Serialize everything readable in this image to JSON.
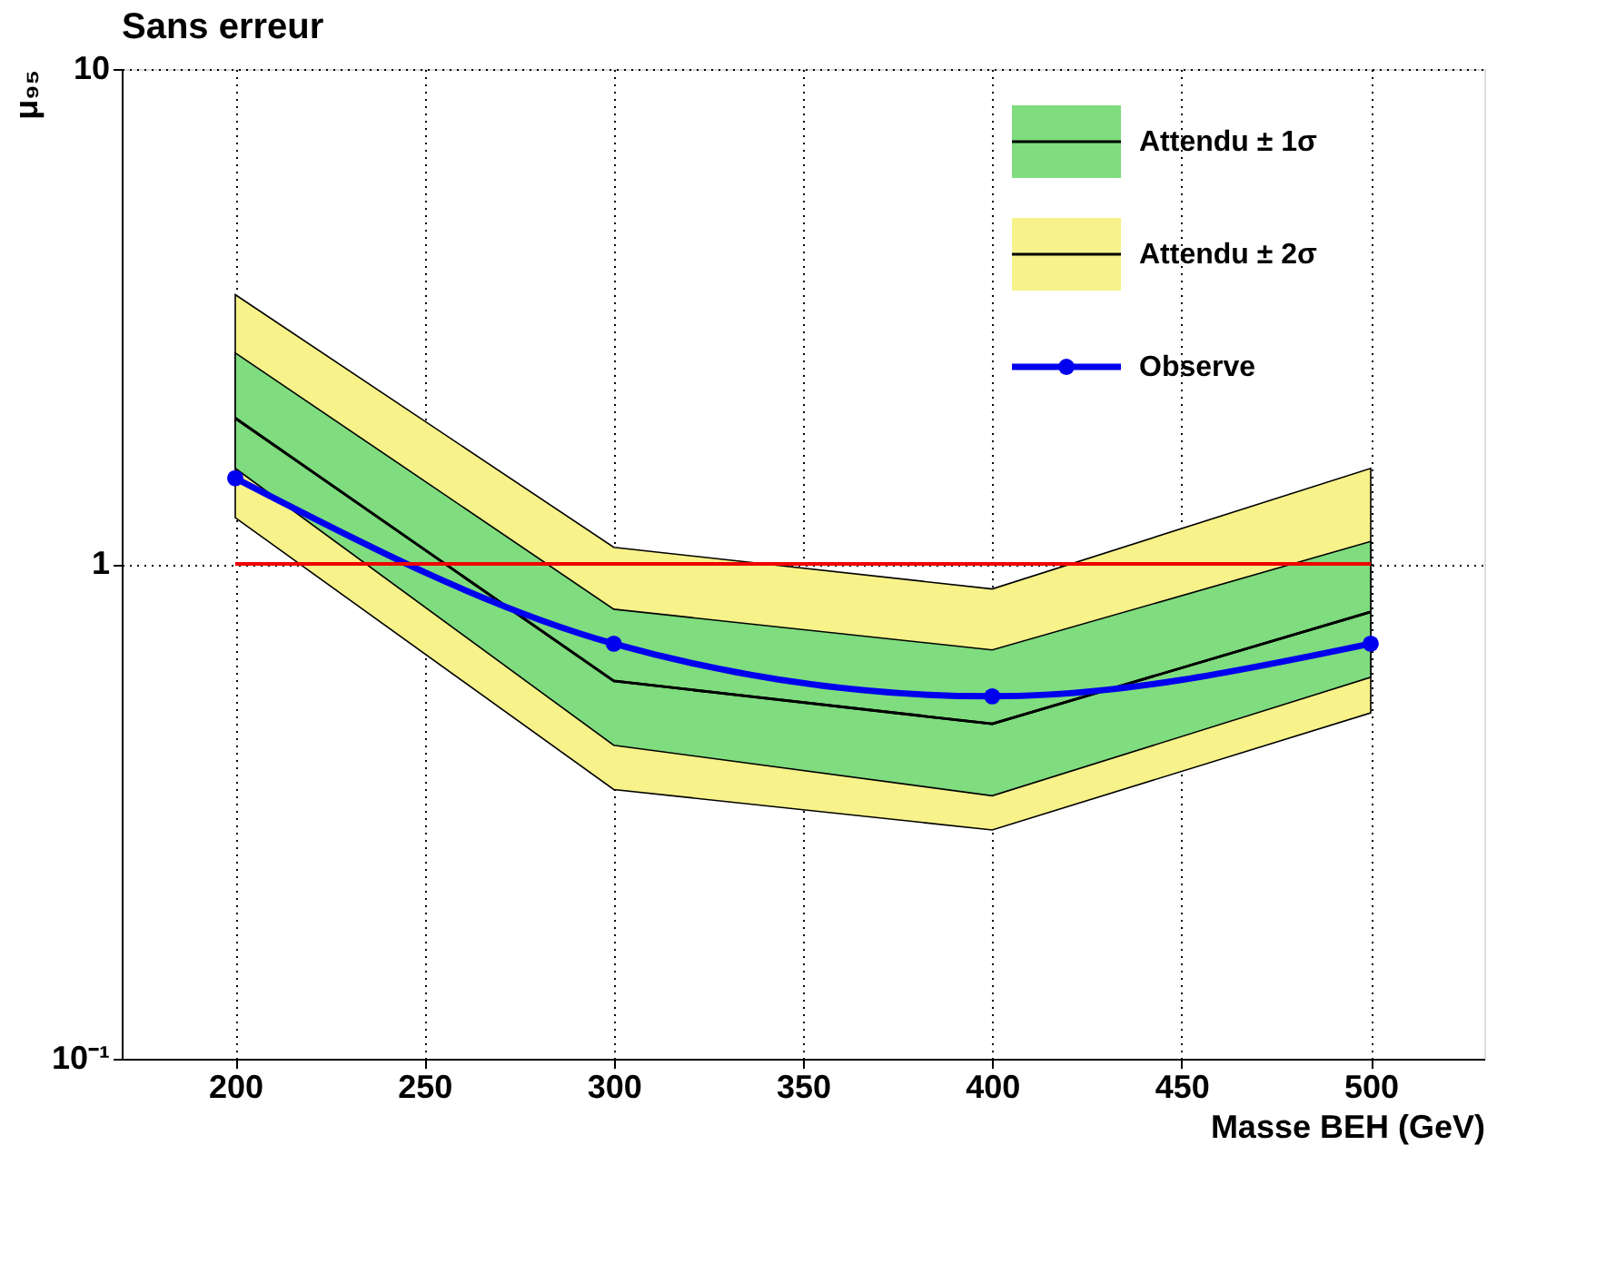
{
  "chart_data": {
    "type": "line",
    "title": "Sans erreur",
    "xlabel": "Masse BEH (GeV)",
    "ylabel": "μ₉₅",
    "x": [
      200,
      300,
      400,
      500
    ],
    "series": [
      {
        "name": "Attendu ± 1σ",
        "color": "#000000",
        "values": [
          1.97,
          0.58,
          0.475,
          0.8
        ],
        "lower": [
          1.56,
          0.43,
          0.34,
          0.59
        ],
        "upper": [
          2.67,
          0.81,
          0.67,
          1.11
        ]
      },
      {
        "name": "Attendu ± 2σ",
        "color": "#000000",
        "values": [
          1.97,
          0.58,
          0.475,
          0.8
        ],
        "lower": [
          1.24,
          0.35,
          0.29,
          0.5
        ],
        "upper": [
          3.5,
          1.08,
          0.89,
          1.56
        ]
      },
      {
        "name": "Observe",
        "color": "#0000ee",
        "marker": "circle",
        "values": [
          1.49,
          0.69,
          0.54,
          0.69
        ]
      }
    ],
    "ref_lines": [
      {
        "axis": "y",
        "value": 1,
        "color": "#ee0000"
      }
    ],
    "log": "y",
    "xlim": [
      170,
      530
    ],
    "xticks": [
      200,
      250,
      300,
      350,
      400,
      450,
      500
    ],
    "ylim": [
      0.1,
      10
    ],
    "yticks": [
      {
        "value": 0.1,
        "label": "10⁻¹"
      },
      1,
      10
    ],
    "grid": true,
    "legend": "top right"
  }
}
